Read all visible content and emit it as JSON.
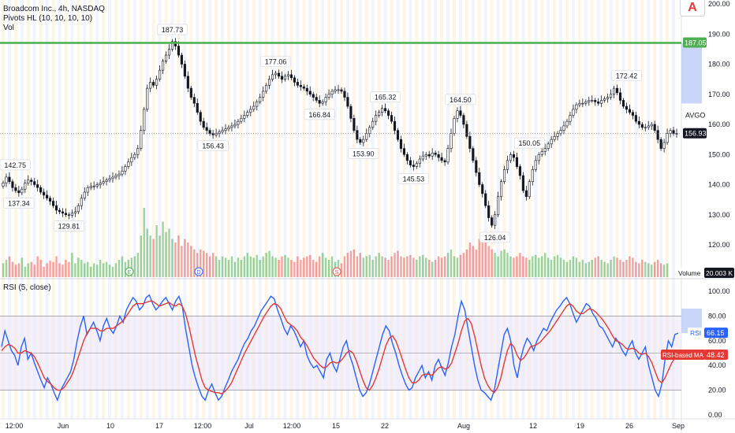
{
  "header": {
    "symbol_line": "Broadcom Inc., 4h, NASDAQ",
    "indicator_pivots": "Pivots HL (10, 10, 10, 10)",
    "indicator_vol": "Vol",
    "rsi_title": "RSI (5, close)",
    "logo_glyph": "A"
  },
  "colors": {
    "up": "#26a69a",
    "down": "#ef5350",
    "candle": "#131722",
    "resistance": "#4caf50",
    "rsi_line": "#2962ff",
    "rsi_ma": "#e53935",
    "vol_up": "#4caf50",
    "vol_down": "#ef5350",
    "price_label": "#131722",
    "highlight": "#b3c5f7"
  },
  "chart_data": [
    {
      "type": "candlestick",
      "title": "Broadcom Inc., 4h, NASDAQ",
      "y_ticks": [
        "200.00",
        "190.00",
        "180.00",
        "170.00",
        "160.00",
        "150.00",
        "140.00",
        "130.00",
        "120.00"
      ],
      "ylim": [
        115,
        200
      ],
      "x_tick_labels": [
        "12:00",
        "Jun",
        "10",
        "17",
        "12:00",
        "Jul",
        "12:00",
        "15",
        "22",
        "Aug",
        "12",
        "19",
        "26",
        "Sep"
      ],
      "resistance_level": 187.05,
      "resistance_label": "187.05",
      "last_price": 156.93,
      "last_price_label": "156.93",
      "symbol_tag": "AVGO",
      "pivot_labels": [
        "142.75",
        "137.34",
        "129.81",
        "187.73",
        "156.43",
        "177.06",
        "166.84",
        "153.90",
        "165.32",
        "145.53",
        "164.50",
        "126.04",
        "150.05",
        "172.42"
      ],
      "pivots": [
        {
          "label": "142.75",
          "value": 142.75,
          "kind": "high"
        },
        {
          "label": "137.34",
          "value": 137.34,
          "kind": "low"
        },
        {
          "label": "129.81",
          "value": 129.81,
          "kind": "low"
        },
        {
          "label": "187.73",
          "value": 187.73,
          "kind": "high"
        },
        {
          "label": "156.43",
          "value": 156.43,
          "kind": "low"
        },
        {
          "label": "177.06",
          "value": 177.06,
          "kind": "high"
        },
        {
          "label": "166.84",
          "value": 166.84,
          "kind": "low"
        },
        {
          "label": "153.90",
          "value": 153.9,
          "kind": "low"
        },
        {
          "label": "165.32",
          "value": 165.32,
          "kind": "high"
        },
        {
          "label": "145.53",
          "value": 145.53,
          "kind": "low"
        },
        {
          "label": "164.50",
          "value": 164.5,
          "kind": "high"
        },
        {
          "label": "126.04",
          "value": 126.04,
          "kind": "low"
        },
        {
          "label": "150.05",
          "value": 150.05,
          "kind": "high"
        },
        {
          "label": "172.42",
          "value": 172.42,
          "kind": "high"
        }
      ],
      "close_path": [
        140.5,
        142.5,
        141,
        139,
        138,
        137.3,
        138.5,
        140.5,
        141.5,
        141,
        140,
        139,
        137.5,
        136.5,
        135.5,
        134.5,
        133,
        131.5,
        131,
        130.5,
        130,
        129.8,
        130.5,
        131,
        133,
        135.5,
        137.5,
        139,
        139.5,
        139.5,
        140,
        140.5,
        141,
        141.5,
        142,
        142.5,
        143,
        143.5,
        144.5,
        146,
        147.5,
        149,
        150,
        152,
        158,
        165,
        172,
        174,
        173,
        175,
        178,
        181,
        183,
        185,
        187.5,
        186,
        183,
        180,
        176,
        172,
        169,
        167,
        164,
        161,
        159,
        158,
        157,
        156.5,
        157,
        157.5,
        158,
        158.5,
        159,
        159.5,
        160,
        161,
        162,
        163,
        164,
        165,
        166,
        167.5,
        169,
        171,
        173,
        175,
        176.5,
        177,
        176,
        175,
        176,
        176.5,
        175.5,
        174,
        173,
        172.5,
        172,
        171,
        170,
        169,
        168,
        167,
        167.5,
        169,
        170,
        171,
        171.5,
        171.5,
        171,
        169,
        166,
        162,
        158,
        155,
        154,
        155,
        157,
        159,
        161,
        163,
        164,
        165.3,
        164.5,
        163,
        161,
        158,
        155,
        152,
        150,
        148,
        146.5,
        146,
        147,
        148.5,
        149.5,
        150,
        149.5,
        150.5,
        150,
        149,
        148,
        147.5,
        152,
        157,
        162,
        164.5,
        163,
        160,
        156,
        152,
        148,
        144,
        140,
        137,
        133,
        129,
        126.5,
        130,
        136,
        141,
        145,
        148,
        150,
        149,
        146,
        143,
        138,
        136,
        141,
        145,
        148,
        150,
        151,
        152,
        153.5,
        155,
        156,
        157,
        158,
        159.5,
        161,
        163,
        165,
        166.5,
        167,
        167,
        167.5,
        168,
        168,
        167.5,
        167,
        168,
        168.5,
        169,
        170,
        172,
        170.5,
        168,
        166,
        165,
        164,
        163,
        161,
        160,
        159,
        159,
        159.5,
        160,
        158,
        155,
        152,
        154,
        157,
        158,
        157,
        156.9
      ]
    },
    {
      "type": "bar",
      "title": "Vol",
      "unit_label": "Volume",
      "last_value_label": "20.003 K",
      "event_markers": [
        "E",
        "D",
        "S"
      ],
      "relative_values": [
        0.2,
        0.25,
        0.3,
        0.22,
        0.18,
        0.2,
        0.28,
        0.15,
        0.2,
        0.22,
        0.18,
        0.3,
        0.25,
        0.15,
        0.2,
        0.24,
        0.22,
        0.3,
        0.2,
        0.18,
        0.25,
        0.22,
        0.35,
        0.2,
        0.28,
        0.25,
        0.2,
        0.22,
        0.15,
        0.2,
        0.18,
        0.25,
        0.2,
        0.22,
        0.18,
        0.15,
        0.2,
        0.25,
        0.3,
        0.22,
        0.25,
        0.28,
        0.3,
        0.35,
        0.6,
        1.0,
        0.7,
        0.6,
        0.55,
        0.75,
        0.6,
        0.8,
        0.65,
        0.7,
        0.55,
        0.5,
        0.6,
        0.45,
        0.55,
        0.5,
        0.45,
        0.4,
        0.35,
        0.4,
        0.38,
        0.35,
        0.3,
        0.35,
        0.3,
        0.25,
        0.3,
        0.28,
        0.25,
        0.3,
        0.22,
        0.28,
        0.25,
        0.3,
        0.35,
        0.3,
        0.28,
        0.32,
        0.25,
        0.3,
        0.35,
        0.38,
        0.3,
        0.28,
        0.25,
        0.3,
        0.32,
        0.28,
        0.25,
        0.22,
        0.3,
        0.25,
        0.28,
        0.3,
        0.32,
        0.25,
        0.22,
        0.3,
        0.35,
        0.28,
        0.25,
        0.3,
        0.22,
        0.25,
        0.2,
        0.3,
        0.35,
        0.38,
        0.4,
        0.3,
        0.35,
        0.28,
        0.3,
        0.32,
        0.25,
        0.3,
        0.35,
        0.3,
        0.28,
        0.25,
        0.3,
        0.35,
        0.38,
        0.3,
        0.28,
        0.3,
        0.32,
        0.28,
        0.25,
        0.3,
        0.32,
        0.28,
        0.25,
        0.22,
        0.25,
        0.3,
        0.28,
        0.3,
        0.35,
        0.4,
        0.3,
        0.28,
        0.32,
        0.35,
        0.4,
        0.5,
        0.45,
        0.4,
        0.55,
        0.6,
        0.5,
        0.45,
        0.4,
        0.35,
        0.3,
        0.38,
        0.4,
        0.35,
        0.3,
        0.28,
        0.3,
        0.35,
        0.3,
        0.28,
        0.25,
        0.3,
        0.32,
        0.28,
        0.3,
        0.35,
        0.28,
        0.25,
        0.3,
        0.32,
        0.28,
        0.25,
        0.22,
        0.25,
        0.3,
        0.28,
        0.22,
        0.25,
        0.2,
        0.22,
        0.25,
        0.28,
        0.3,
        0.25,
        0.22,
        0.2,
        0.25,
        0.3,
        0.28,
        0.25,
        0.22,
        0.25,
        0.3,
        0.28,
        0.22,
        0.2,
        0.25,
        0.22,
        0.2,
        0.18,
        0.22,
        0.25,
        0.2,
        0.18,
        0.2
      ]
    },
    {
      "type": "line",
      "title": "RSI (5, close)",
      "y_ticks": [
        "100.00",
        "80.00",
        "60.00",
        "40.00",
        "20.00",
        "0.00"
      ],
      "ylim": [
        0,
        100
      ],
      "band_upper": 80,
      "band_middle": 50,
      "band_lower": 20,
      "series": [
        {
          "name": "RSI",
          "last_value_label": "66.15",
          "last_value": 66.15,
          "values": [
            55,
            68,
            60,
            52,
            48,
            40,
            55,
            62,
            45,
            50,
            42,
            35,
            28,
            22,
            30,
            25,
            18,
            12,
            20,
            25,
            30,
            35,
            45,
            60,
            72,
            80,
            65,
            70,
            75,
            68,
            60,
            72,
            78,
            70,
            66,
            72,
            80,
            75,
            85,
            90,
            95,
            92,
            85,
            88,
            95,
            97,
            90,
            85,
            88,
            92,
            95,
            90,
            85,
            92,
            96,
            88,
            70,
            55,
            40,
            30,
            22,
            15,
            12,
            20,
            25,
            18,
            12,
            15,
            22,
            28,
            35,
            40,
            45,
            52,
            58,
            62,
            68,
            72,
            78,
            84,
            88,
            92,
            96,
            94,
            85,
            78,
            70,
            65,
            72,
            68,
            62,
            55,
            60,
            48,
            42,
            38,
            40,
            35,
            30,
            45,
            50,
            40,
            35,
            45,
            55,
            60,
            48,
            40,
            30,
            20,
            15,
            18,
            25,
            35,
            45,
            55,
            65,
            72,
            68,
            58,
            50,
            40,
            32,
            25,
            20,
            22,
            30,
            35,
            40,
            30,
            35,
            28,
            40,
            45,
            38,
            32,
            42,
            55,
            65,
            80,
            92,
            85,
            70,
            55,
            40,
            28,
            20,
            18,
            15,
            12,
            20,
            35,
            50,
            65,
            70,
            60,
            40,
            30,
            45,
            55,
            62,
            58,
            52,
            60,
            65,
            70,
            68,
            75,
            80,
            85,
            88,
            92,
            95,
            90,
            82,
            75,
            80,
            85,
            90,
            88,
            82,
            78,
            72,
            70,
            65,
            60,
            55,
            62,
            58,
            52,
            48,
            55,
            60,
            50,
            45,
            50,
            55,
            40,
            30,
            20,
            15,
            25,
            45,
            60,
            55,
            65,
            66.15
          ]
        },
        {
          "name": "RSI-based MA",
          "last_value_label": "48.42",
          "last_value": 48.42,
          "values": [
            52,
            55,
            57,
            56,
            54,
            50,
            50,
            52,
            51,
            50,
            47,
            42,
            36,
            30,
            27,
            25,
            22,
            20,
            20,
            22,
            26,
            30,
            36,
            44,
            52,
            60,
            66,
            70,
            70,
            70,
            68,
            68,
            70,
            70,
            70,
            72,
            74,
            76,
            80,
            84,
            88,
            90,
            90,
            90,
            91,
            92,
            92,
            90,
            88,
            89,
            90,
            91,
            89,
            88,
            90,
            88,
            82,
            72,
            60,
            48,
            38,
            28,
            22,
            20,
            19,
            18,
            18,
            17,
            19,
            22,
            26,
            32,
            38,
            44,
            50,
            55,
            60,
            65,
            70,
            75,
            80,
            84,
            88,
            90,
            89,
            86,
            80,
            75,
            73,
            71,
            68,
            63,
            60,
            56,
            51,
            46,
            43,
            40,
            38,
            39,
            42,
            43,
            42,
            43,
            46,
            50,
            52,
            50,
            44,
            36,
            28,
            22,
            20,
            24,
            30,
            38,
            47,
            56,
            62,
            64,
            60,
            53,
            45,
            37,
            30,
            26,
            26,
            28,
            32,
            33,
            33,
            32,
            35,
            38,
            39,
            37,
            38,
            42,
            50,
            58,
            68,
            76,
            78,
            74,
            64,
            52,
            40,
            30,
            24,
            20,
            18,
            22,
            30,
            42,
            52,
            58,
            55,
            48,
            44,
            46,
            50,
            55,
            56,
            57,
            59,
            62,
            65,
            68,
            72,
            76,
            80,
            84,
            88,
            90,
            88,
            84,
            82,
            82,
            84,
            86,
            85,
            83,
            80,
            77,
            73,
            69,
            64,
            60,
            59,
            57,
            54,
            53,
            54,
            53,
            50,
            49,
            50,
            47,
            42,
            35,
            28,
            26,
            30,
            36,
            42,
            46,
            48.42
          ]
        }
      ]
    }
  ]
}
